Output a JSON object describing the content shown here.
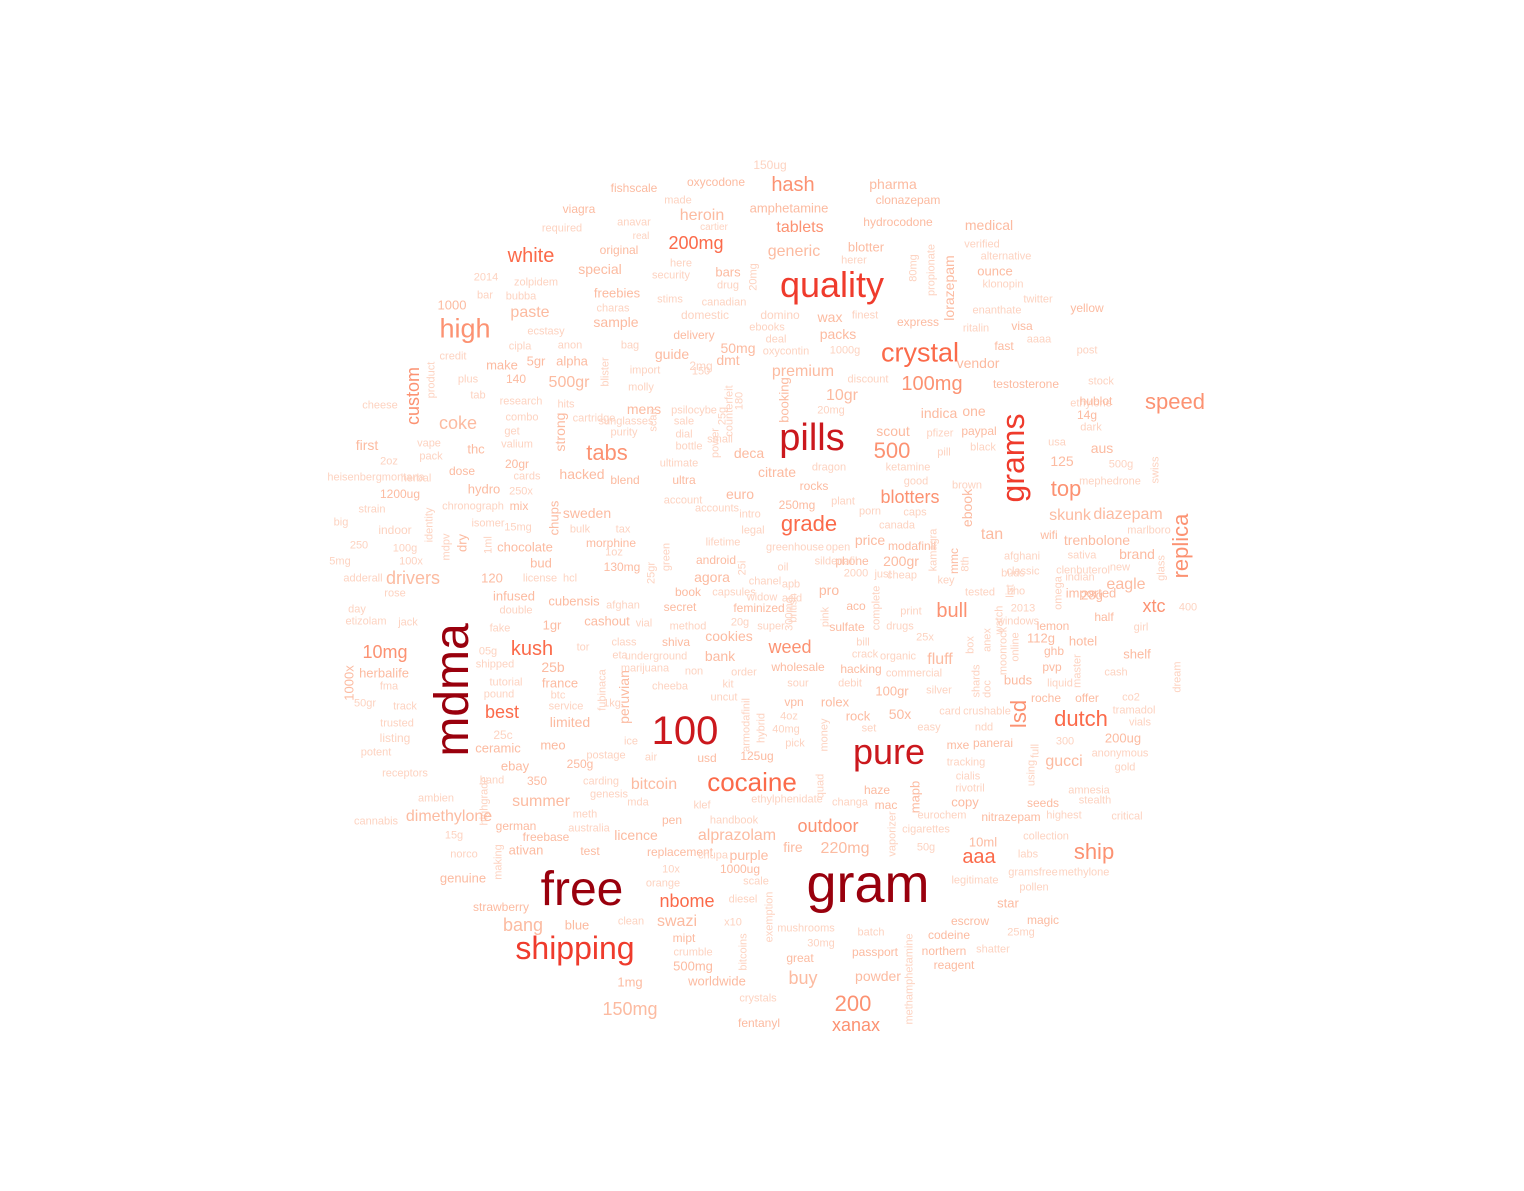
{
  "palette": {
    "t1": "#99000d",
    "t2": "#cb181d",
    "t3": "#ef3b2c",
    "t4": "#fb6a4a",
    "t5": "#fc9272",
    "t6": "#fcbba1",
    "t7": "#fdd3c1"
  },
  "words": [
    "gram",
    "free",
    "mdma",
    "100",
    "pills",
    "pure",
    "quality",
    "shipping",
    "grams",
    "cocaine",
    "crystal",
    "high",
    "replica",
    "100mg",
    "hash",
    "white",
    "200mg",
    "ship",
    "dutch",
    "speed",
    "top",
    "lsd",
    "kush",
    "200",
    "aaa",
    "xanax",
    "nbome",
    "weed",
    "grade",
    "500",
    "tabs",
    "blotters",
    "bull",
    "xtc",
    "10mg",
    "custom",
    "tablets",
    "generic",
    "heroin",
    "pharma",
    "oxycodone",
    "amphetamine",
    "clonazepam",
    "fishscale",
    "150ug",
    "viagra",
    "made",
    "anavar",
    "real",
    "cartier",
    "hydrocodone",
    "medical",
    "required",
    "original",
    "blotter",
    "here",
    "verified",
    "alternative",
    "special",
    "ounce",
    "2014",
    "zolpidem",
    "security",
    "herer",
    "drug",
    "klonopin",
    "bar",
    "bubba",
    "freebies",
    "bars",
    "canadian",
    "stims",
    "enanthate",
    "twitter",
    "yellow",
    "1000",
    "paste",
    "charas",
    "domestic",
    "domino",
    "wax",
    "finest",
    "express",
    "ritalin",
    "visa",
    "sample",
    "ebooks",
    "packs",
    "ecstasy",
    "deal",
    "oxycontin",
    "delivery",
    "fast",
    "aaaa",
    "cipla",
    "anon",
    "bag",
    "guide",
    "1000g",
    "vendor",
    "make",
    "5gr",
    "alpha",
    "dmt",
    "premium",
    "testosterone",
    "stock",
    "credit",
    "140",
    "import",
    "molly",
    "150",
    "discount",
    "post",
    "plus",
    "500gr",
    "2mg",
    "10gr",
    "ethylone",
    "hublot",
    "tab",
    "product",
    "research",
    "hits",
    "psilocybe",
    "indica",
    "one",
    "14g",
    "cheese",
    "combo",
    "cartridge",
    "mens",
    "sale",
    "dark",
    "coke",
    "sunglasses",
    "purity",
    "dial",
    "scout",
    "pfizer",
    "paypal",
    "vape",
    "get",
    "bottle",
    "small",
    "aus",
    "first",
    "thc",
    "valium",
    "strong",
    "deca",
    "black",
    "usa",
    "125",
    "2oz",
    "pack",
    "dose",
    "20gr",
    "ultimate",
    "citrate",
    "dragon",
    "ketamine",
    "pill",
    "heisenbergmontana",
    "cards",
    "hacked",
    "blend",
    "good",
    "500g",
    "herbal",
    "1200ug",
    "250x",
    "hydro",
    "ultra",
    "rocks",
    "brown",
    "mephedrone",
    "mix",
    "chups",
    "sweden",
    "account",
    "euro",
    "plant",
    "250mg",
    "swiss",
    "strain",
    "chronograph",
    "accounts",
    "intro",
    "porn",
    "caps",
    "ebook",
    "skunk",
    "big",
    "indoor",
    "isomer",
    "15mg",
    "bulk",
    "tax",
    "legal",
    "canada",
    "tan",
    "diazepam",
    "marlboro",
    "100g",
    "250",
    "100x",
    "1ml",
    "mdpv",
    "identity",
    "dry",
    "chocolate",
    "morphine",
    "lifetime",
    "price",
    "modafinil",
    "trenbolone",
    "5mg",
    "bud",
    "1oz",
    "android",
    "greenhouse",
    "open",
    "phone",
    "kamagra",
    "wifi",
    "afghani",
    "sativa",
    "brand",
    "130mg",
    "classic",
    "clenbuterol",
    "oil",
    "sildenafil",
    "just",
    "200gr",
    "mmc",
    "new",
    "adderall",
    "drivers",
    "license",
    "hcl",
    "120",
    "25gr",
    "green",
    "agora",
    "2000",
    "cheap",
    "key",
    "buds",
    "indian",
    "glass",
    "rose",
    "infused",
    "book",
    "capsules",
    "chanel",
    "apb",
    "pro",
    "8th",
    "tested",
    "bho",
    "imported",
    "eagle",
    "28g",
    "day",
    "double",
    "cubensis",
    "afghan",
    "secret",
    "feminized",
    "widow",
    "acid",
    "aco",
    "complete",
    "print",
    "2013",
    "watch",
    "half",
    "etizolam",
    "jack",
    "1gr",
    "cashout",
    "vial",
    "method",
    "20g",
    "british",
    "pink",
    "sulfate",
    "25x",
    "windows",
    "400",
    "fake",
    "tor",
    "class",
    "shiva",
    "cookies",
    "super",
    "girl",
    "underground",
    "drugs",
    "bill",
    "box",
    "anex",
    "lemon",
    "hotel",
    "05g",
    "eta",
    "112g",
    "bank",
    "organic",
    "crack",
    "fluff",
    "shelf",
    "shipped",
    "25b",
    "marijuana",
    "non",
    "wholesale",
    "hacking",
    "moonrock",
    "online",
    "ghb",
    "pvp",
    "cash",
    "herbalife",
    "tutorial",
    "france",
    "order",
    "kit",
    "sour",
    "cheeba",
    "commercial",
    "buds2",
    "liquid",
    "fma",
    "pound",
    "btc",
    "fubinaca",
    "debit",
    "100gr",
    "silver",
    "shards",
    "doc",
    "offer",
    "roche",
    "50gr",
    "service",
    "peruvian",
    "uncut",
    "vpn",
    "rolex",
    "best",
    "track",
    "1kg",
    "co2",
    "trusted",
    "limited",
    "tramadol",
    "4oz",
    "40mg",
    "easy",
    "crushable",
    "ndd",
    "rock",
    "50x",
    "card",
    "vials",
    "200ug",
    "listing",
    "25c",
    "ice",
    "pick",
    "set",
    "panerai",
    "300",
    "ceramic",
    "meo",
    "postage",
    "air",
    "125ug",
    "mxe",
    "250g",
    "anonymous",
    "potent",
    "ebay",
    "usd",
    "tracking",
    "gucci",
    "gold",
    "receptors",
    "hand",
    "350",
    "carding",
    "genesis",
    "cialis",
    "rivotril",
    "bitcoin",
    "haze",
    "fentanyl",
    "amnesia",
    "ambien",
    "highgrade",
    "mda",
    "klef",
    "ethylphenidate",
    "changa",
    "mac",
    "copy",
    "seeds",
    "stealth",
    "summer",
    "cannabis",
    "dimethylone",
    "meth",
    "handbook",
    "eurochem",
    "nitrazepam",
    "highest",
    "critical",
    "german",
    "australia",
    "pen",
    "outdoor",
    "cigarettes",
    "15g",
    "freebase",
    "licence",
    "alprazolam",
    "10ml",
    "collection",
    "norco",
    "ativan",
    "test",
    "replacement",
    "chupa",
    "fire",
    "220mg",
    "50g",
    "labs",
    "making",
    "purple",
    "10x",
    "1000ug",
    "gramsfree",
    "genuine",
    "orange",
    "scale",
    "legitimate",
    "pollen",
    "strawberry",
    "diesel",
    "star",
    "methylone",
    "bang",
    "blue",
    "clean",
    "x10",
    "swazi",
    "escrow",
    "magic",
    "mushrooms",
    "batch",
    "codeine",
    "25mg",
    "mipt",
    "30mg",
    "crumble",
    "northern",
    "shatter",
    "great",
    "passport",
    "500mg",
    "reagent",
    "buy",
    "powder",
    "1mg",
    "worldwide",
    "150mg",
    "crystals",
    "methamphetamine",
    "exemption",
    "bitcoins",
    "quad",
    "money",
    "hybrid",
    "armodafinil",
    "300mg",
    "80mg",
    "propionate",
    "lorazepam",
    "20mg",
    "180",
    "counterfeit",
    "booking",
    "25g",
    "power",
    "scan",
    "blister",
    "vaporizer",
    "mapb",
    "using",
    "full",
    "omega",
    "master",
    "dream",
    "list",
    "mg50",
    "20mg2",
    "25i",
    "1000x",
    "apvp",
    "red"
  ]
}
